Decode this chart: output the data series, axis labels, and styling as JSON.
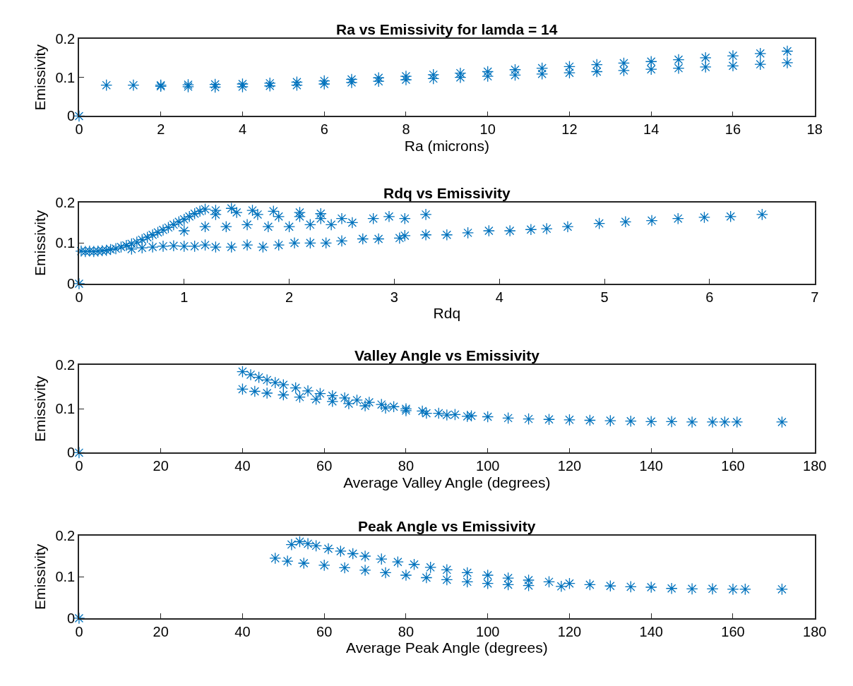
{
  "chart_data": [
    {
      "type": "scatter",
      "title": "Ra vs Emissivity for lamda = 14",
      "xlabel": "Ra (microns)",
      "ylabel": "Emissivity",
      "color": "#0072bd",
      "marker": "cross",
      "xlim": [
        0,
        18
      ],
      "ylim": [
        0,
        0.2
      ],
      "xticks": [
        0,
        2,
        4,
        6,
        8,
        10,
        12,
        14,
        16,
        18
      ],
      "yticks": [
        0,
        0.1,
        0.2
      ],
      "x": [
        0,
        0.67,
        1.33,
        2,
        2.67,
        3.33,
        4,
        4.67,
        5.33,
        6,
        6.67,
        7.33,
        8,
        8.67,
        9.33,
        10,
        10.67,
        11.33,
        12,
        12.67,
        13.33,
        14,
        14.67,
        15.33,
        16,
        16.67,
        17.33,
        2,
        2.67,
        3.33,
        4,
        4.67,
        5.33,
        6,
        6.67,
        7.33,
        8,
        8.67,
        9.33,
        10,
        10.67,
        11.33,
        12,
        12.67,
        13.33,
        14,
        14.67,
        15.33,
        16,
        16.67,
        17.33
      ],
      "values": [
        0,
        0.08,
        0.08,
        0.08,
        0.081,
        0.082,
        0.083,
        0.085,
        0.088,
        0.091,
        0.095,
        0.099,
        0.103,
        0.107,
        0.111,
        0.115,
        0.12,
        0.124,
        0.128,
        0.133,
        0.137,
        0.141,
        0.146,
        0.151,
        0.156,
        0.162,
        0.168,
        0.077,
        0.076,
        0.075,
        0.076,
        0.078,
        0.08,
        0.083,
        0.087,
        0.09,
        0.094,
        0.097,
        0.1,
        0.103,
        0.106,
        0.109,
        0.112,
        0.115,
        0.118,
        0.121,
        0.124,
        0.127,
        0.13,
        0.134,
        0.138
      ]
    },
    {
      "type": "scatter",
      "title": "Rdq vs Emissivity",
      "xlabel": "Rdq",
      "ylabel": "Emissivity",
      "color": "#0072bd",
      "marker": "cross",
      "xlim": [
        0,
        7
      ],
      "ylim": [
        0,
        0.2
      ],
      "xticks": [
        0,
        1,
        2,
        3,
        4,
        5,
        6,
        7
      ],
      "yticks": [
        0,
        0.1,
        0.2
      ],
      "x": [
        0,
        0.02,
        0.06,
        0.1,
        0.14,
        0.18,
        0.22,
        0.26,
        0.3,
        0.35,
        0.4,
        0.45,
        0.5,
        0.55,
        0.6,
        0.65,
        0.7,
        0.75,
        0.8,
        0.85,
        0.9,
        0.95,
        1.0,
        1.05,
        1.1,
        1.15,
        1.2,
        0.5,
        0.6,
        0.7,
        0.8,
        0.9,
        1.0,
        1.1,
        1.2,
        1.3,
        1.45,
        1.6,
        1.75,
        1.9,
        2.05,
        2.2,
        2.35,
        2.5,
        2.7,
        2.85,
        3.05,
        3.1,
        1.0,
        1.2,
        1.4,
        1.6,
        1.8,
        2.0,
        2.2,
        2.4,
        2.6,
        1.3,
        1.5,
        1.7,
        1.9,
        2.1,
        2.3,
        2.5,
        2.8,
        2.95,
        3.1,
        3.3,
        1.3,
        1.45,
        1.65,
        1.85,
        2.1,
        2.3,
        3.3,
        3.5,
        3.7,
        3.9,
        4.1,
        4.3,
        4.45,
        4.65,
        4.95,
        5.2,
        5.45,
        5.7,
        5.95,
        6.2,
        6.5
      ],
      "values": [
        0,
        0.08,
        0.079,
        0.08,
        0.079,
        0.08,
        0.081,
        0.082,
        0.084,
        0.086,
        0.09,
        0.094,
        0.098,
        0.102,
        0.108,
        0.114,
        0.12,
        0.126,
        0.132,
        0.138,
        0.145,
        0.152,
        0.158,
        0.165,
        0.172,
        0.178,
        0.183,
        0.085,
        0.088,
        0.09,
        0.092,
        0.093,
        0.092,
        0.092,
        0.095,
        0.09,
        0.09,
        0.095,
        0.09,
        0.095,
        0.1,
        0.1,
        0.1,
        0.105,
        0.11,
        0.11,
        0.112,
        0.118,
        0.13,
        0.14,
        0.14,
        0.145,
        0.14,
        0.14,
        0.145,
        0.145,
        0.15,
        0.17,
        0.175,
        0.17,
        0.165,
        0.165,
        0.16,
        0.16,
        0.16,
        0.165,
        0.16,
        0.17,
        0.18,
        0.185,
        0.18,
        0.178,
        0.175,
        0.172,
        0.12,
        0.12,
        0.125,
        0.13,
        0.13,
        0.133,
        0.135,
        0.14,
        0.148,
        0.152,
        0.155,
        0.16,
        0.163,
        0.165,
        0.17
      ]
    },
    {
      "type": "scatter",
      "title": "Valley Angle vs Emissivity",
      "xlabel": "Average Valley Angle (degrees)",
      "ylabel": "Emissivity",
      "color": "#0072bd",
      "marker": "cross",
      "xlim": [
        0,
        180
      ],
      "ylim": [
        0,
        0.2
      ],
      "xticks": [
        0,
        20,
        40,
        60,
        80,
        100,
        120,
        140,
        160,
        180
      ],
      "yticks": [
        0,
        0.1,
        0.2
      ],
      "x": [
        0,
        40,
        42,
        44,
        46,
        48,
        50,
        53,
        56,
        59,
        62,
        65,
        68,
        71,
        74,
        77,
        80,
        84,
        88,
        92,
        96,
        100,
        105,
        110,
        115,
        120,
        40,
        43,
        46,
        50,
        54,
        58,
        62,
        66,
        70,
        75,
        80,
        85,
        90,
        95,
        125,
        130,
        135,
        140,
        145,
        150,
        155,
        158,
        161,
        172
      ],
      "values": [
        0,
        0.185,
        0.178,
        0.172,
        0.166,
        0.16,
        0.155,
        0.148,
        0.141,
        0.135,
        0.13,
        0.125,
        0.12,
        0.115,
        0.11,
        0.105,
        0.1,
        0.095,
        0.09,
        0.087,
        0.084,
        0.082,
        0.079,
        0.077,
        0.076,
        0.075,
        0.145,
        0.14,
        0.136,
        0.132,
        0.127,
        0.122,
        0.117,
        0.112,
        0.107,
        0.102,
        0.096,
        0.09,
        0.086,
        0.083,
        0.074,
        0.073,
        0.072,
        0.071,
        0.071,
        0.07,
        0.07,
        0.07,
        0.07,
        0.07
      ]
    },
    {
      "type": "scatter",
      "title": "Peak Angle vs Emissivity",
      "xlabel": "Average Peak Angle (degrees)",
      "ylabel": "Emissivity",
      "color": "#0072bd",
      "marker": "cross",
      "xlim": [
        0,
        180
      ],
      "ylim": [
        0,
        0.2
      ],
      "xticks": [
        0,
        20,
        40,
        60,
        80,
        100,
        120,
        140,
        160,
        180
      ],
      "yticks": [
        0,
        0.1,
        0.2
      ],
      "x": [
        0,
        52,
        54,
        56,
        58,
        61,
        64,
        67,
        70,
        74,
        78,
        82,
        86,
        90,
        95,
        100,
        105,
        110,
        115,
        120,
        125,
        130,
        135,
        140,
        48,
        51,
        55,
        60,
        65,
        70,
        75,
        80,
        85,
        90,
        95,
        100,
        105,
        110,
        118,
        145,
        150,
        155,
        160,
        163,
        172
      ],
      "values": [
        0,
        0.178,
        0.185,
        0.18,
        0.175,
        0.168,
        0.162,
        0.156,
        0.15,
        0.143,
        0.136,
        0.13,
        0.123,
        0.117,
        0.11,
        0.104,
        0.097,
        0.092,
        0.088,
        0.084,
        0.081,
        0.078,
        0.076,
        0.075,
        0.145,
        0.138,
        0.133,
        0.128,
        0.122,
        0.116,
        0.11,
        0.104,
        0.098,
        0.093,
        0.088,
        0.084,
        0.081,
        0.079,
        0.077,
        0.072,
        0.071,
        0.071,
        0.07,
        0.07,
        0.07
      ]
    }
  ]
}
